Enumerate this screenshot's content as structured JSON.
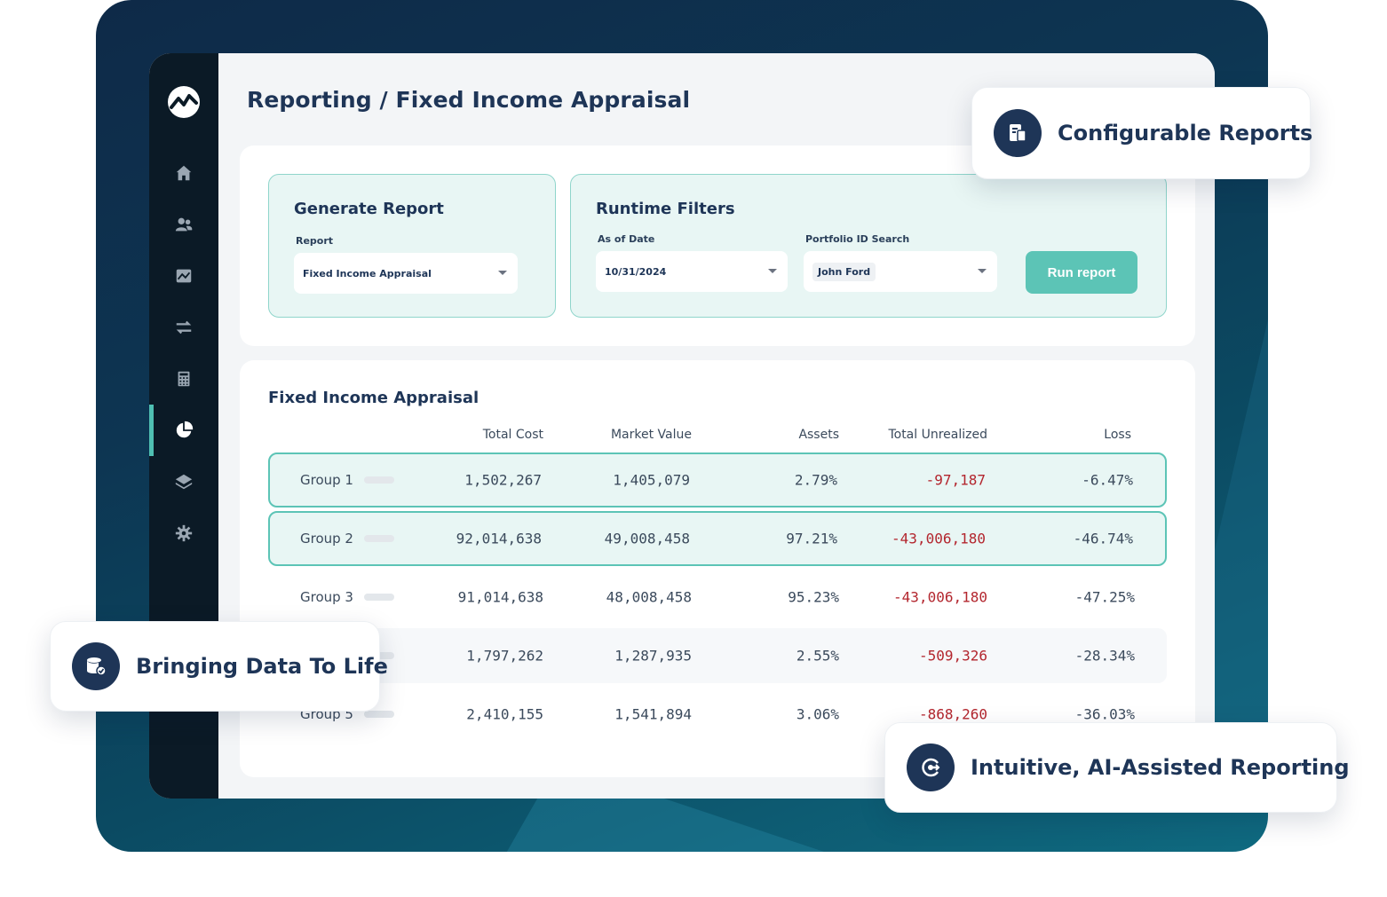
{
  "page": {
    "title": "Reporting / Fixed Income Appraisal"
  },
  "sidebar": {
    "items": [
      {
        "icon": "home-icon"
      },
      {
        "icon": "users-icon"
      },
      {
        "icon": "chart-image-icon"
      },
      {
        "icon": "transfer-arrows-icon"
      },
      {
        "icon": "calculator-icon"
      },
      {
        "icon": "pie-chart-icon",
        "active": true
      },
      {
        "icon": "layers-icon"
      },
      {
        "icon": "gear-icon"
      }
    ]
  },
  "generate": {
    "title": "Generate Report",
    "report_label": "Report",
    "report_value": "Fixed Income Appraisal"
  },
  "runtime": {
    "title": "Runtime Filters",
    "date_label": "As of Date",
    "date_value": "10/31/2024",
    "portfolio_label": "Portfolio ID Search",
    "portfolio_value": "John Ford",
    "run_label": "Run report"
  },
  "table": {
    "title": "Fixed Income Appraisal",
    "columns": [
      "Total Cost",
      "Market Value",
      "Assets",
      "Total Unrealized",
      "Loss"
    ],
    "rows": [
      {
        "name": "Group 1",
        "total_cost": "1,502,267",
        "market_value": "1,405,079",
        "assets": "2.79%",
        "unrealized": "-97,187",
        "loss": "-6.47%"
      },
      {
        "name": "Group 2",
        "total_cost": "92,014,638",
        "market_value": "49,008,458",
        "assets": "97.21%",
        "unrealized": "-43,006,180",
        "loss": "-46.74%"
      },
      {
        "name": "Group 3",
        "total_cost": "91,014,638",
        "market_value": "48,008,458",
        "assets": "95.23%",
        "unrealized": "-43,006,180",
        "loss": "-47.25%"
      },
      {
        "name": "",
        "total_cost": "1,797,262",
        "market_value": "1,287,935",
        "assets": "2.55%",
        "unrealized": "-509,326",
        "loss": "-28.34%"
      },
      {
        "name": "Group 5",
        "total_cost": "2,410,155",
        "market_value": "1,541,894",
        "assets": "3.06%",
        "unrealized": "-868,260",
        "loss": "-36.03%"
      }
    ]
  },
  "callouts": {
    "configurable": "Configurable Reports",
    "bringing": "Bringing Data To Life",
    "intuitive": "Intuitive, AI-Assisted Reporting"
  },
  "colors": {
    "accent": "#5cc4b6",
    "navy": "#1e3557",
    "negative": "#b3262e"
  }
}
